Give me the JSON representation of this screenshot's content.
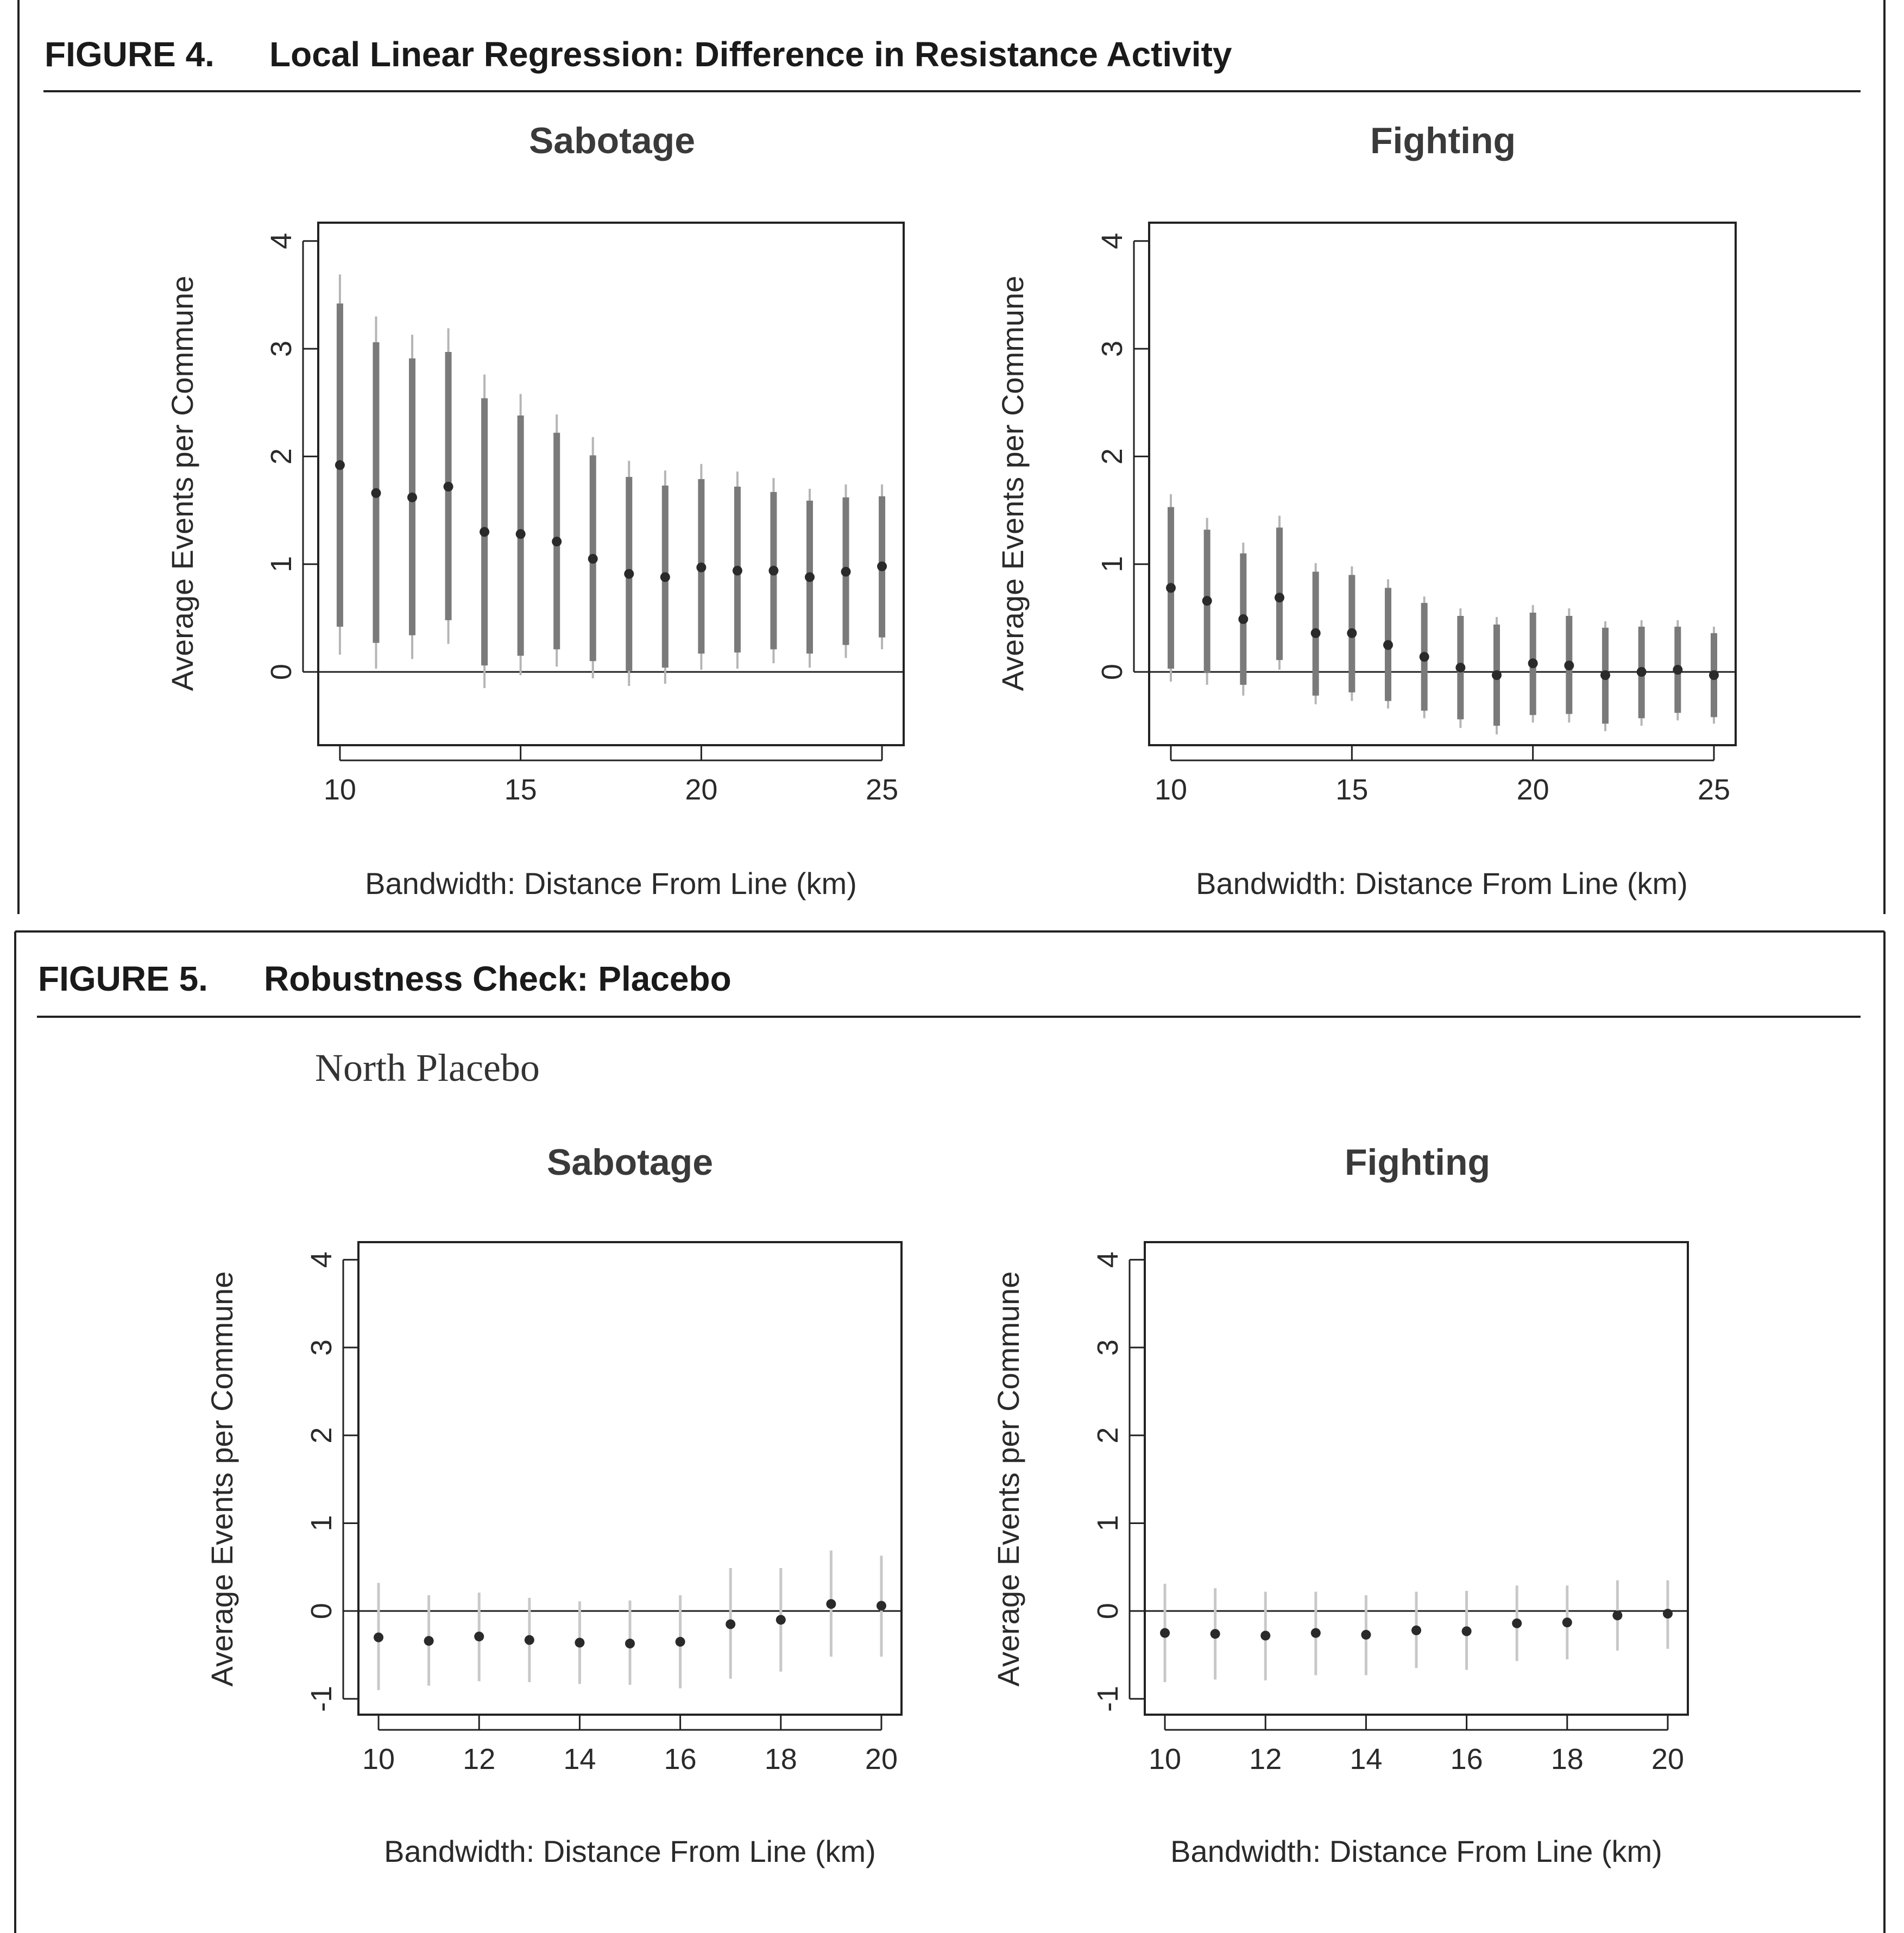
{
  "figures": [
    {
      "label": "FIGURE 4.",
      "title": "Local Linear Regression: Difference in Resistance Activity"
    },
    {
      "label": "FIGURE 5.",
      "title": "Robustness Check: Placebo",
      "subtitle": "North Placebo"
    }
  ],
  "colors": {
    "text": "#1a1a1a",
    "point": "#2a2a2a",
    "ci_outer": "#b5b5b5",
    "ci_inner": "#7a7a7a",
    "ci_placebo": "#c8c8c8",
    "frame": "#222222"
  },
  "chart_data": [
    {
      "type": "scatter",
      "figure": "FIGURE 4.",
      "title": "Sabotage",
      "xlabel": "Bandwidth: Distance From Line (km)",
      "ylabel": "Average Events per Commune",
      "xlim": [
        9.4,
        25.6
      ],
      "ylim": [
        -0.68,
        4.17
      ],
      "xticks": [
        "10",
        "15",
        "20",
        "25"
      ],
      "yticks": [
        "0",
        "1",
        "2",
        "3",
        "4"
      ],
      "zero_line": true,
      "x": [
        10,
        11,
        12,
        13,
        14,
        15,
        16,
        17,
        18,
        19,
        20,
        21,
        22,
        23,
        24,
        25
      ],
      "estimate": [
        1.92,
        1.66,
        1.62,
        1.72,
        1.3,
        1.28,
        1.21,
        1.05,
        0.91,
        0.88,
        0.97,
        0.94,
        0.94,
        0.88,
        0.93,
        0.98
      ],
      "ci95_low": [
        0.16,
        0.03,
        0.12,
        0.26,
        -0.15,
        -0.03,
        0.05,
        -0.06,
        -0.13,
        -0.11,
        0.02,
        0.03,
        0.08,
        0.04,
        0.13,
        0.21
      ],
      "ci95_high": [
        3.69,
        3.3,
        3.13,
        3.19,
        2.76,
        2.58,
        2.39,
        2.18,
        1.96,
        1.87,
        1.93,
        1.86,
        1.8,
        1.7,
        1.74,
        1.74
      ],
      "ci90_low": [
        0.42,
        0.27,
        0.34,
        0.48,
        0.06,
        0.15,
        0.21,
        0.1,
        0.01,
        0.04,
        0.17,
        0.18,
        0.21,
        0.17,
        0.25,
        0.32
      ],
      "ci90_high": [
        3.42,
        3.06,
        2.91,
        2.97,
        2.54,
        2.38,
        2.22,
        2.01,
        1.81,
        1.73,
        1.79,
        1.72,
        1.67,
        1.59,
        1.62,
        1.63
      ]
    },
    {
      "type": "scatter",
      "figure": "FIGURE 4.",
      "title": "Fighting",
      "xlabel": "Bandwidth: Distance From Line (km)",
      "ylabel": "Average Events per Commune",
      "xlim": [
        9.4,
        25.6
      ],
      "ylim": [
        -0.68,
        4.17
      ],
      "xticks": [
        "10",
        "15",
        "20",
        "25"
      ],
      "yticks": [
        "0",
        "1",
        "2",
        "3",
        "4"
      ],
      "zero_line": true,
      "x": [
        10,
        11,
        12,
        13,
        14,
        15,
        16,
        17,
        18,
        19,
        20,
        21,
        22,
        23,
        24,
        25
      ],
      "estimate": [
        0.78,
        0.66,
        0.49,
        0.69,
        0.36,
        0.36,
        0.25,
        0.14,
        0.04,
        -0.03,
        0.08,
        0.06,
        -0.03,
        0.0,
        0.02,
        -0.03
      ],
      "ci95_low": [
        -0.09,
        -0.12,
        -0.22,
        0.02,
        -0.3,
        -0.27,
        -0.34,
        -0.43,
        -0.52,
        -0.58,
        -0.47,
        -0.47,
        -0.55,
        -0.5,
        -0.45,
        -0.48
      ],
      "ci95_high": [
        1.65,
        1.43,
        1.2,
        1.45,
        1.01,
        0.98,
        0.86,
        0.7,
        0.59,
        0.51,
        0.62,
        0.59,
        0.47,
        0.48,
        0.48,
        0.42
      ],
      "ci90_low": [
        0.03,
        -0.01,
        -0.12,
        0.11,
        -0.22,
        -0.19,
        -0.27,
        -0.36,
        -0.44,
        -0.5,
        -0.4,
        -0.39,
        -0.48,
        -0.43,
        -0.38,
        -0.42
      ],
      "ci90_high": [
        1.53,
        1.32,
        1.1,
        1.34,
        0.93,
        0.9,
        0.78,
        0.64,
        0.52,
        0.44,
        0.55,
        0.52,
        0.41,
        0.42,
        0.42,
        0.36
      ]
    },
    {
      "type": "scatter",
      "figure": "FIGURE 5.",
      "title": "Sabotage",
      "xlabel": "Bandwidth: Distance From Line (km)",
      "ylabel": "Average Events per Commune",
      "xlim": [
        9.6,
        20.4
      ],
      "ylim": [
        -1.18,
        4.2
      ],
      "xticks": [
        "10",
        "12",
        "14",
        "16",
        "18",
        "20"
      ],
      "yticks": [
        "-1",
        "0",
        "1",
        "2",
        "3",
        "4"
      ],
      "zero_line": true,
      "x": [
        10,
        11,
        12,
        13,
        14,
        15,
        16,
        17,
        18,
        19,
        20
      ],
      "estimate": [
        -0.3,
        -0.34,
        -0.29,
        -0.33,
        -0.36,
        -0.37,
        -0.35,
        -0.15,
        -0.1,
        0.08,
        0.06
      ],
      "ci95_low": [
        -0.9,
        -0.85,
        -0.8,
        -0.81,
        -0.83,
        -0.84,
        -0.88,
        -0.77,
        -0.69,
        -0.52,
        -0.52
      ],
      "ci95_high": [
        0.32,
        0.18,
        0.21,
        0.15,
        0.11,
        0.12,
        0.18,
        0.49,
        0.49,
        0.69,
        0.63
      ]
    },
    {
      "type": "scatter",
      "figure": "FIGURE 5.",
      "title": "Fighting",
      "xlabel": "Bandwidth: Distance From Line (km)",
      "ylabel": "Average Events per Commune",
      "xlim": [
        9.6,
        20.4
      ],
      "ylim": [
        -1.18,
        4.2
      ],
      "xticks": [
        "10",
        "12",
        "14",
        "16",
        "18",
        "20"
      ],
      "yticks": [
        "-1",
        "0",
        "1",
        "2",
        "3",
        "4"
      ],
      "zero_line": true,
      "x": [
        10,
        11,
        12,
        13,
        14,
        15,
        16,
        17,
        18,
        19,
        20
      ],
      "estimate": [
        -0.25,
        -0.26,
        -0.28,
        -0.25,
        -0.27,
        -0.22,
        -0.23,
        -0.14,
        -0.13,
        -0.05,
        -0.03
      ],
      "ci95_low": [
        -0.81,
        -0.78,
        -0.79,
        -0.73,
        -0.73,
        -0.65,
        -0.67,
        -0.57,
        -0.55,
        -0.45,
        -0.43
      ],
      "ci95_high": [
        0.31,
        0.26,
        0.22,
        0.22,
        0.18,
        0.22,
        0.23,
        0.29,
        0.29,
        0.35,
        0.35
      ]
    }
  ]
}
